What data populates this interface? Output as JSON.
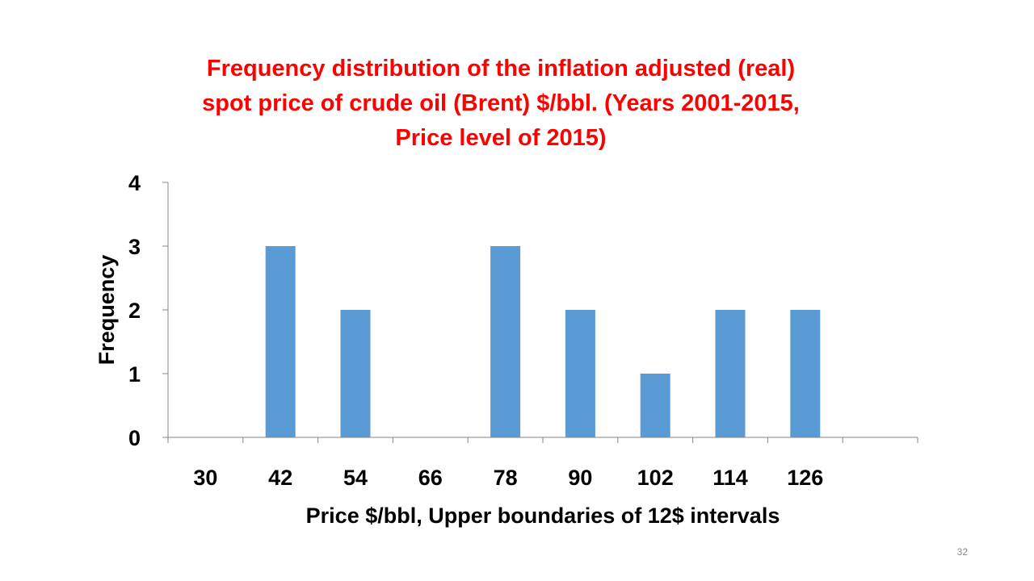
{
  "slide": {
    "page_number": "32"
  },
  "chart_data": {
    "type": "bar",
    "title_lines": [
      "Frequency distribution of the inflation adjusted (real)",
      "spot price of crude oil (Brent) $/bbl. (Years 2001-2015,",
      "Price level of 2015)"
    ],
    "xlabel": "Price $/bbl, Upper boundaries of 12$ intervals",
    "ylabel": "Frequency",
    "categories": [
      "30",
      "42",
      "54",
      "66",
      "78",
      "90",
      "102",
      "114",
      "126",
      ""
    ],
    "values": [
      0,
      3,
      2,
      0,
      3,
      2,
      1,
      2,
      2,
      0
    ],
    "ylim": [
      0,
      4
    ],
    "yticks": [
      0,
      1,
      2,
      3,
      4
    ],
    "grid": false,
    "legend": "none",
    "colors": {
      "bar": "#5b9bd5",
      "title": "#ff0000",
      "axis": "#868686"
    }
  }
}
